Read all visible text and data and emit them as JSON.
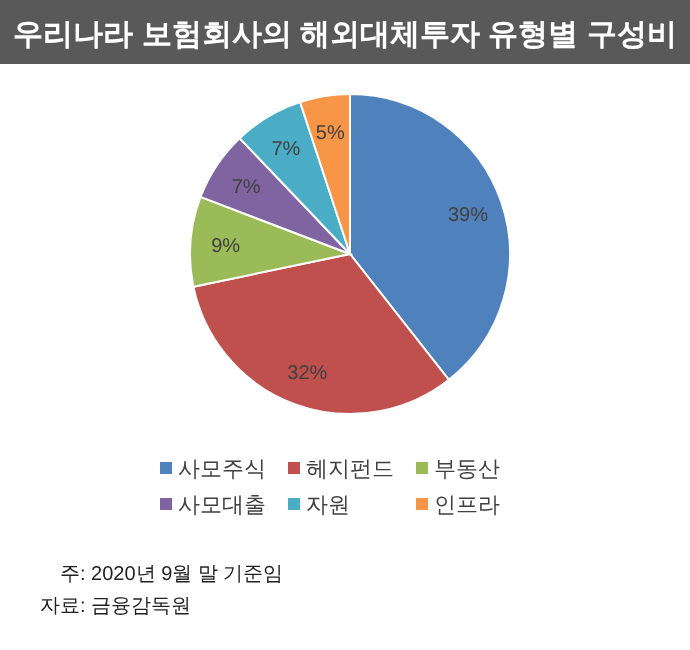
{
  "chart_data": {
    "type": "pie",
    "title": "우리나라 보험회사의 해외대체투자 유형별 구성비",
    "categories": [
      "사모주식",
      "헤지펀드",
      "부동산",
      "사모대출",
      "자원",
      "인프라"
    ],
    "values": [
      39,
      32,
      9,
      7,
      7,
      5
    ],
    "colors": [
      "#4f81bd",
      "#c0504d",
      "#9bbb59",
      "#8064a2",
      "#4bacc6",
      "#f79646"
    ],
    "value_labels": [
      "39%",
      "32%",
      "9%",
      "7%",
      "7%",
      "5%"
    ],
    "legend": "bottom",
    "annotations": [
      "주: 2020년 9월 말 기준임",
      "자료: 금융감독원"
    ]
  }
}
